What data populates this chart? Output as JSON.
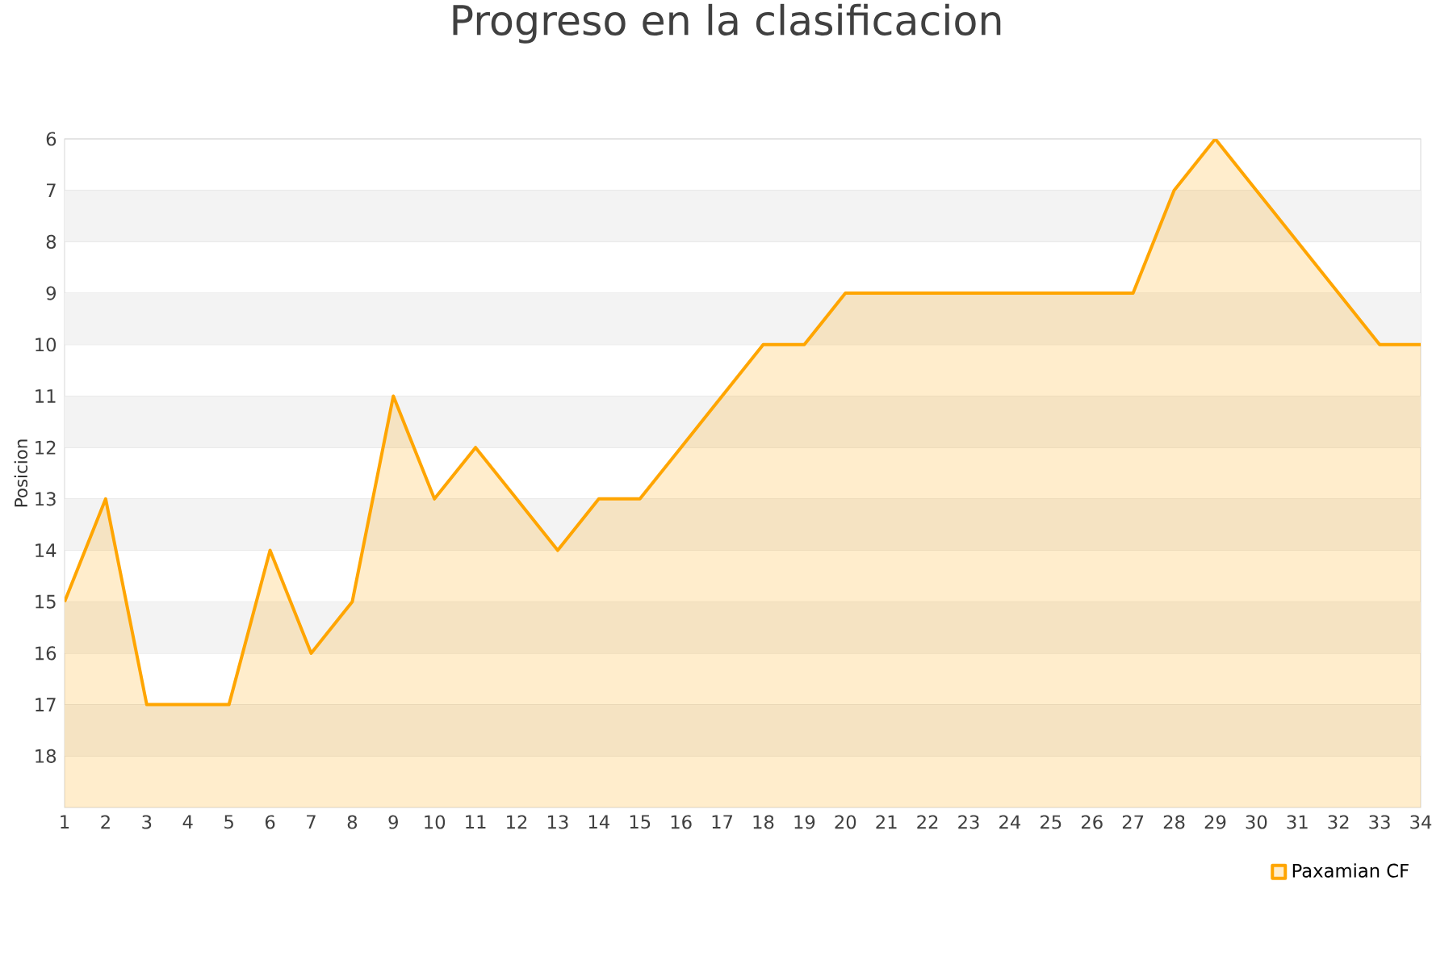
{
  "chart_data": {
    "type": "area",
    "title": "Progreso en la clasificacion",
    "ylabel": "Posicion",
    "x": [
      1,
      2,
      3,
      4,
      5,
      6,
      7,
      8,
      9,
      10,
      11,
      12,
      13,
      14,
      15,
      16,
      17,
      18,
      19,
      20,
      21,
      22,
      23,
      24,
      25,
      26,
      27,
      28,
      29,
      30,
      31,
      32,
      33,
      34
    ],
    "series": [
      {
        "name": "Paxamian CF",
        "color": "#ffa500",
        "values": [
          15,
          13,
          17,
          17,
          17,
          14,
          16,
          15,
          11,
          13,
          12,
          13,
          14,
          13,
          13,
          12,
          11,
          10,
          10,
          9,
          9,
          9,
          9,
          9,
          9,
          9,
          9,
          7,
          6,
          7,
          8,
          9,
          10,
          10
        ]
      }
    ],
    "xlim": [
      1,
      34
    ],
    "xticks": [
      1,
      2,
      3,
      4,
      5,
      6,
      7,
      8,
      9,
      10,
      11,
      12,
      13,
      14,
      15,
      16,
      17,
      18,
      19,
      20,
      21,
      22,
      23,
      24,
      25,
      26,
      27,
      28,
      29,
      30,
      31,
      32,
      33,
      34
    ],
    "ylim": [
      19,
      6
    ],
    "yticks": [
      6,
      7,
      8,
      9,
      10,
      11,
      12,
      13,
      14,
      15,
      16,
      17,
      18
    ],
    "bands": [
      {
        "axis": "y",
        "from": 7,
        "to": 8,
        "color": "#f3f3f3"
      },
      {
        "axis": "y",
        "from": 9,
        "to": 10,
        "color": "#f3f3f3"
      },
      {
        "axis": "y",
        "from": 11,
        "to": 12,
        "color": "#f3f3f3"
      },
      {
        "axis": "y",
        "from": 13,
        "to": 14,
        "color": "#f3f3f3"
      },
      {
        "axis": "y",
        "from": 15,
        "to": 16,
        "color": "#f3f3f3"
      },
      {
        "axis": "y",
        "from": 17,
        "to": 18,
        "color": "#f3f3f3"
      }
    ],
    "grid": "y",
    "legend": "bottom right",
    "marker": "none",
    "line_style": "solid"
  }
}
